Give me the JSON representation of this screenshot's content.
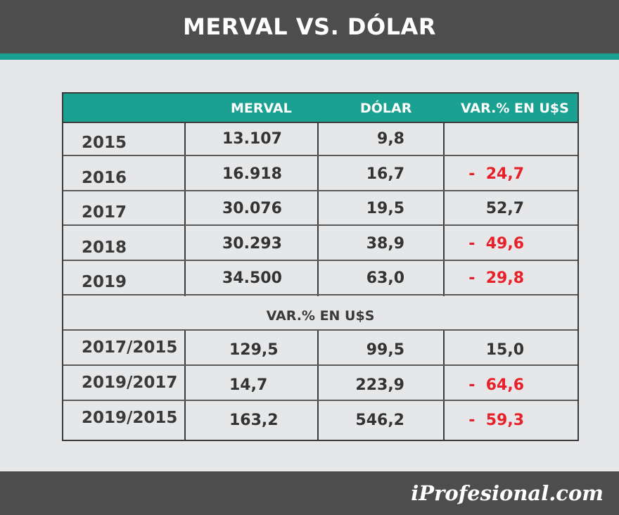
{
  "header": {
    "title": "MERVAL VS. DÓLAR"
  },
  "colors": {
    "header_bg": "#4d4d4d",
    "accent": "#1ba192",
    "negative": "#e8202a",
    "page_bg": "#e6e7e8"
  },
  "chart_data": {
    "type": "table",
    "columns": [
      "",
      "MERVAL",
      "DÓLAR",
      "VAR.% EN U$S"
    ],
    "rows": [
      {
        "label": "2015",
        "merval": "13.107",
        "dolar": "9,8",
        "var": ""
      },
      {
        "label": "2016",
        "merval": "16.918",
        "dolar": "16,7",
        "var": "-  24,7",
        "negative": true
      },
      {
        "label": "2017",
        "merval": "30.076",
        "dolar": "19,5",
        "var": "52,7"
      },
      {
        "label": "2018",
        "merval": "30.293",
        "dolar": "38,9",
        "var": "-  49,6",
        "negative": true
      },
      {
        "label": "2019",
        "merval": "34.500",
        "dolar": "63,0",
        "var": "-  29,8",
        "negative": true
      }
    ],
    "section_label": "VAR.% EN U$S",
    "variation_rows": [
      {
        "label": "2017/2015",
        "merval": "129,5",
        "dolar": "99,5",
        "var": "15,0"
      },
      {
        "label": "2019/2017",
        "merval": "14,7",
        "dolar": "223,9",
        "var": "-  64,6",
        "negative": true
      },
      {
        "label": "2019/2015",
        "merval": "163,2",
        "dolar": "546,2",
        "var": "-  59,3",
        "negative": true
      }
    ]
  },
  "footer": {
    "logo": "iProfesional.com"
  }
}
